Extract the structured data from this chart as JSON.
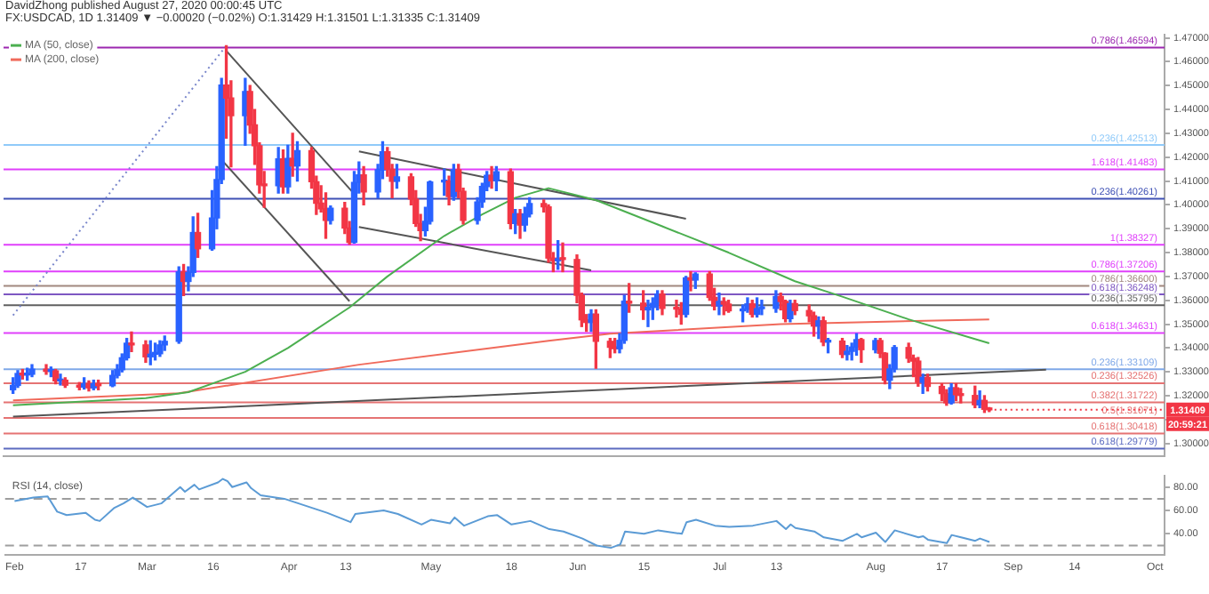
{
  "chart_data": [
    {
      "type": "candlestick",
      "title": "DavidZhong published August 27, 2020 00:00:45 UTC",
      "subtitle": "FX:USDCAD, 1D 1.31409 ▼ −0.00020 (−0.02%) O:1.31429 H:1.31501 L:1.31335 C:1.31409",
      "series": [
        {
          "type": "candlestick",
          "x": [
            "2020-02-03",
            "2020-02-04",
            "2020-02-05",
            "2020-02-06",
            "2020-02-07",
            "2020-02-10",
            "2020-02-11",
            "2020-02-12",
            "2020-02-13",
            "2020-02-14",
            "2020-02-17",
            "2020-02-18",
            "2020-02-19",
            "2020-02-20",
            "2020-02-21",
            "2020-02-24",
            "2020-02-25",
            "2020-02-26",
            "2020-02-27",
            "2020-02-28",
            "2020-03-02",
            "2020-03-03",
            "2020-03-04",
            "2020-03-05",
            "2020-03-06",
            "2020-03-09",
            "2020-03-10",
            "2020-03-11",
            "2020-03-12",
            "2020-03-13",
            "2020-03-16",
            "2020-03-17",
            "2020-03-18",
            "2020-03-19",
            "2020-03-20",
            "2020-03-23",
            "2020-03-24",
            "2020-03-25",
            "2020-03-26",
            "2020-03-27",
            "2020-03-30",
            "2020-03-31",
            "2020-04-01",
            "2020-04-02",
            "2020-04-03",
            "2020-04-06",
            "2020-04-07",
            "2020-04-08",
            "2020-04-09",
            "2020-04-10",
            "2020-04-13",
            "2020-04-14",
            "2020-04-15",
            "2020-04-16",
            "2020-04-17",
            "2020-04-20",
            "2020-04-21",
            "2020-04-22",
            "2020-04-23",
            "2020-04-24",
            "2020-04-27",
            "2020-04-28",
            "2020-04-29",
            "2020-04-30",
            "2020-05-01",
            "2020-05-04",
            "2020-05-05",
            "2020-05-06",
            "2020-05-07",
            "2020-05-08",
            "2020-05-11",
            "2020-05-12",
            "2020-05-13",
            "2020-05-14",
            "2020-05-15",
            "2020-05-18",
            "2020-05-19",
            "2020-05-20",
            "2020-05-21",
            "2020-05-22",
            "2020-05-25",
            "2020-05-26",
            "2020-05-27",
            "2020-05-28",
            "2020-05-29",
            "2020-06-01",
            "2020-06-02",
            "2020-06-03",
            "2020-06-04",
            "2020-06-05",
            "2020-06-08",
            "2020-06-09",
            "2020-06-10",
            "2020-06-11",
            "2020-06-12",
            "2020-06-15",
            "2020-06-16",
            "2020-06-17",
            "2020-06-18",
            "2020-06-19",
            "2020-06-22",
            "2020-06-23",
            "2020-06-24",
            "2020-06-25",
            "2020-06-26",
            "2020-06-29",
            "2020-06-30",
            "2020-07-01",
            "2020-07-02",
            "2020-07-03",
            "2020-07-06",
            "2020-07-07",
            "2020-07-08",
            "2020-07-09",
            "2020-07-10",
            "2020-07-13",
            "2020-07-14",
            "2020-07-15",
            "2020-07-16",
            "2020-07-17",
            "2020-07-20",
            "2020-07-21",
            "2020-07-22",
            "2020-07-23",
            "2020-07-24",
            "2020-07-27",
            "2020-07-28",
            "2020-07-29",
            "2020-07-30",
            "2020-07-31",
            "2020-08-03",
            "2020-08-04",
            "2020-08-05",
            "2020-08-06",
            "2020-08-07",
            "2020-08-10",
            "2020-08-11",
            "2020-08-12",
            "2020-08-13",
            "2020-08-14",
            "2020-08-17",
            "2020-08-18",
            "2020-08-19",
            "2020-08-20",
            "2020-08-21",
            "2020-08-24",
            "2020-08-25",
            "2020-08-26",
            "2020-08-27"
          ],
          "ohlc": [
            [
              1.3225,
              1.3275,
              1.321,
              1.3243
            ],
            [
              1.3243,
              1.3305,
              1.3235,
              1.3293
            ],
            [
              1.3293,
              1.331,
              1.327,
              1.3287
            ],
            [
              1.3287,
              1.3315,
              1.3265,
              1.329
            ],
            [
              1.329,
              1.333,
              1.328,
              1.3311
            ],
            [
              1.3311,
              1.333,
              1.329,
              1.3302
            ],
            [
              1.3302,
              1.332,
              1.328,
              1.3304
            ],
            [
              1.3304,
              1.331,
              1.325,
              1.3262
            ],
            [
              1.3262,
              1.329,
              1.3245,
              1.3265
            ],
            [
              1.3265,
              1.3275,
              1.3235,
              1.3244
            ],
            [
              1.3244,
              1.3255,
              1.3225,
              1.3236
            ],
            [
              1.3236,
              1.3275,
              1.3228,
              1.325
            ],
            [
              1.325,
              1.3262,
              1.322,
              1.3233
            ],
            [
              1.3233,
              1.3265,
              1.3225,
              1.325
            ],
            [
              1.325,
              1.3265,
              1.3225,
              1.3242
            ],
            [
              1.3242,
              1.3305,
              1.3238,
              1.3285
            ],
            [
              1.3285,
              1.333,
              1.3275,
              1.3309
            ],
            [
              1.3309,
              1.3375,
              1.33,
              1.3359
            ],
            [
              1.3359,
              1.344,
              1.335,
              1.342
            ],
            [
              1.342,
              1.3467,
              1.3385,
              1.3413
            ],
            [
              1.3413,
              1.343,
              1.334,
              1.3363
            ],
            [
              1.3363,
              1.343,
              1.333,
              1.3374
            ],
            [
              1.3374,
              1.342,
              1.335,
              1.3376
            ],
            [
              1.3376,
              1.343,
              1.3365,
              1.3413
            ],
            [
              1.3413,
              1.345,
              1.339,
              1.3428
            ],
            [
              1.3428,
              1.374,
              1.342,
              1.3719
            ],
            [
              1.3719,
              1.375,
              1.362,
              1.3679
            ],
            [
              1.3679,
              1.374,
              1.364,
              1.3717
            ],
            [
              1.3717,
              1.395,
              1.37,
              1.3884
            ],
            [
              1.3884,
              1.3965,
              1.378,
              1.3816
            ],
            [
              1.3816,
              1.406,
              1.381,
              1.3945
            ],
            [
              1.3945,
              1.416,
              1.39,
              1.4106
            ],
            [
              1.4106,
              1.453,
              1.409,
              1.4502
            ],
            [
              1.4502,
              1.4667,
              1.428,
              1.4448
            ],
            [
              1.4448,
              1.452,
              1.416,
              1.4374
            ],
            [
              1.4374,
              1.453,
              1.425,
              1.4475
            ],
            [
              1.4475,
              1.45,
              1.43,
              1.4335
            ],
            [
              1.4335,
              1.44,
              1.417,
              1.4248
            ],
            [
              1.4248,
              1.426,
              1.405,
              1.4084
            ],
            [
              1.4084,
              1.414,
              1.399,
              1.408
            ],
            [
              1.408,
              1.424,
              1.405,
              1.4193
            ],
            [
              1.4193,
              1.423,
              1.405,
              1.4076
            ],
            [
              1.4076,
              1.425,
              1.405,
              1.4195
            ],
            [
              1.4195,
              1.43,
              1.412,
              1.4163
            ],
            [
              1.4163,
              1.4265,
              1.41,
              1.4227
            ],
            [
              1.4227,
              1.424,
              1.407,
              1.4097
            ],
            [
              1.4097,
              1.412,
              1.396,
              1.4007
            ],
            [
              1.4007,
              1.408,
              1.397,
              1.3983
            ],
            [
              1.3983,
              1.405,
              1.386,
              1.3935
            ],
            [
              1.3935,
              1.3995,
              1.392,
              1.3986
            ],
            [
              1.3986,
              1.401,
              1.388,
              1.3903
            ],
            [
              1.3903,
              1.393,
              1.3835,
              1.3843
            ],
            [
              1.3843,
              1.414,
              1.384,
              1.4094
            ],
            [
              1.4094,
              1.418,
              1.405,
              1.4126
            ],
            [
              1.4126,
              1.416,
              1.4,
              1.4054
            ],
            [
              1.4054,
              1.417,
              1.403,
              1.4147
            ],
            [
              1.4147,
              1.4265,
              1.411,
              1.4223
            ],
            [
              1.4223,
              1.424,
              1.412,
              1.4149
            ],
            [
              1.4149,
              1.417,
              1.403,
              1.4099
            ],
            [
              1.4099,
              1.417,
              1.407,
              1.4117
            ],
            [
              1.4117,
              1.413,
              1.4,
              1.4024
            ],
            [
              1.4024,
              1.406,
              1.391,
              1.3922
            ],
            [
              1.3922,
              1.396,
              1.385,
              1.3892
            ],
            [
              1.3892,
              1.399,
              1.387,
              1.3931
            ],
            [
              1.3931,
              1.41,
              1.392,
              1.4096
            ],
            [
              1.4096,
              1.415,
              1.404,
              1.41
            ],
            [
              1.41,
              1.412,
              1.4,
              1.4035
            ],
            [
              1.4035,
              1.417,
              1.402,
              1.4147
            ],
            [
              1.4147,
              1.417,
              1.403,
              1.4057
            ],
            [
              1.4057,
              1.407,
              1.392,
              1.3935
            ],
            [
              1.3935,
              1.403,
              1.392,
              1.4012
            ],
            [
              1.4012,
              1.409,
              1.399,
              1.4077
            ],
            [
              1.4077,
              1.414,
              1.406,
              1.4124
            ],
            [
              1.4124,
              1.416,
              1.407,
              1.4101
            ],
            [
              1.4101,
              1.416,
              1.406,
              1.4139
            ],
            [
              1.4139,
              1.415,
              1.39,
              1.3922
            ],
            [
              1.3922,
              1.398,
              1.388,
              1.3963
            ],
            [
              1.3963,
              1.398,
              1.386,
              1.3915
            ],
            [
              1.3915,
              1.399,
              1.389,
              1.3962
            ],
            [
              1.3962,
              1.403,
              1.395,
              1.4006
            ],
            [
              1.4006,
              1.402,
              1.397,
              1.3992
            ],
            [
              1.3992,
              1.4,
              1.376,
              1.3777
            ],
            [
              1.3777,
              1.38,
              1.372,
              1.3766
            ],
            [
              1.3766,
              1.385,
              1.373,
              1.3774
            ],
            [
              1.3774,
              1.384,
              1.372,
              1.3771
            ],
            [
              1.3771,
              1.379,
              1.359,
              1.3621
            ],
            [
              1.3621,
              1.363,
              1.349,
              1.3518
            ],
            [
              1.3518,
              1.354,
              1.347,
              1.3507
            ],
            [
              1.3507,
              1.356,
              1.347,
              1.3542
            ],
            [
              1.3542,
              1.356,
              1.3315,
              1.3428
            ],
            [
              1.3428,
              1.344,
              1.336,
              1.3403
            ],
            [
              1.3403,
              1.344,
              1.338,
              1.3397
            ],
            [
              1.3397,
              1.346,
              1.338,
              1.3432
            ],
            [
              1.3432,
              1.362,
              1.342,
              1.3596
            ],
            [
              1.3596,
              1.367,
              1.355,
              1.3588
            ],
            [
              1.3588,
              1.364,
              1.352,
              1.356
            ],
            [
              1.356,
              1.36,
              1.349,
              1.357
            ],
            [
              1.357,
              1.361,
              1.352,
              1.3587
            ],
            [
              1.3587,
              1.364,
              1.356,
              1.3626
            ],
            [
              1.3626,
              1.364,
              1.354,
              1.3566
            ],
            [
              1.3566,
              1.36,
              1.353,
              1.3563
            ],
            [
              1.3563,
              1.359,
              1.35,
              1.3541
            ],
            [
              1.3541,
              1.37,
              1.353,
              1.3694
            ],
            [
              1.3694,
              1.372,
              1.364,
              1.3685
            ],
            [
              1.3685,
              1.3715,
              1.365,
              1.371
            ],
            [
              1.371,
              1.372,
              1.36,
              1.3612
            ],
            [
              1.3612,
              1.365,
              1.356,
              1.3576
            ],
            [
              1.3576,
              1.363,
              1.354,
              1.3595
            ],
            [
              1.3595,
              1.361,
              1.354,
              1.3584
            ],
            [
              1.3584,
              1.36,
              1.355,
              1.3556
            ],
            [
              1.3556,
              1.358,
              1.351,
              1.3562
            ],
            [
              1.3562,
              1.361,
              1.355,
              1.3585
            ],
            [
              1.3585,
              1.36,
              1.353,
              1.3541
            ],
            [
              1.3541,
              1.361,
              1.353,
              1.3565
            ],
            [
              1.3565,
              1.36,
              1.354,
              1.3566
            ],
            [
              1.3566,
              1.364,
              1.355,
              1.3616
            ],
            [
              1.3616,
              1.363,
              1.356,
              1.3595
            ],
            [
              1.3595,
              1.36,
              1.351,
              1.3523
            ],
            [
              1.3523,
              1.36,
              1.351,
              1.3586
            ],
            [
              1.3586,
              1.36,
              1.354,
              1.3557
            ],
            [
              1.3557,
              1.358,
              1.351,
              1.3535
            ],
            [
              1.3535,
              1.355,
              1.345,
              1.3492
            ],
            [
              1.3492,
              1.353,
              1.344,
              1.3514
            ],
            [
              1.3514,
              1.353,
              1.341,
              1.3425
            ],
            [
              1.3425,
              1.344,
              1.338,
              1.3429
            ],
            [
              1.3429,
              1.344,
              1.336,
              1.3373
            ],
            [
              1.3373,
              1.341,
              1.335,
              1.3386
            ],
            [
              1.3386,
              1.342,
              1.335,
              1.3404
            ],
            [
              1.3404,
              1.346,
              1.337,
              1.3435
            ],
            [
              1.3435,
              1.344,
              1.334,
              1.3393
            ],
            [
              1.3393,
              1.344,
              1.338,
              1.3431
            ],
            [
              1.3431,
              1.344,
              1.336,
              1.3378
            ],
            [
              1.3378,
              1.338,
              1.325,
              1.3265
            ],
            [
              1.3265,
              1.333,
              1.323,
              1.3312
            ],
            [
              1.3312,
              1.341,
              1.33,
              1.3402
            ],
            [
              1.3402,
              1.342,
              1.334,
              1.3357
            ],
            [
              1.3357,
              1.337,
              1.328,
              1.3345
            ],
            [
              1.3345,
              1.336,
              1.324,
              1.3256
            ],
            [
              1.3256,
              1.329,
              1.321,
              1.3277
            ],
            [
              1.3277,
              1.329,
              1.322,
              1.3239
            ],
            [
              1.3239,
              1.325,
              1.318,
              1.3209
            ],
            [
              1.3209,
              1.3225,
              1.316,
              1.317
            ],
            [
              1.317,
              1.325,
              1.3165,
              1.3233
            ],
            [
              1.3233,
              1.325,
              1.318,
              1.3204
            ],
            [
              1.3204,
              1.323,
              1.317,
              1.3201
            ],
            [
              1.3201,
              1.324,
              1.315,
              1.3162
            ],
            [
              1.3162,
              1.322,
              1.315,
              1.318
            ],
            [
              1.318,
              1.32,
              1.313,
              1.3143
            ],
            [
              1.31429,
              1.31501,
              1.31335,
              1.31409
            ]
          ],
          "colors": [
            "#2962ff",
            "#2962ff",
            "#f23645",
            "#2962ff",
            "#2962ff",
            "#f23645",
            "#2962ff",
            "#f23645",
            "#2962ff",
            "#f23645",
            "#f23645",
            "#2962ff",
            "#f23645",
            "#2962ff",
            "#f23645",
            "#2962ff",
            "#2962ff",
            "#2962ff",
            "#2962ff",
            "#f23645",
            "#f23645",
            "#2962ff",
            "#2962ff",
            "#2962ff",
            "#2962ff",
            "#2962ff",
            "#f23645",
            "#2962ff",
            "#2962ff",
            "#f23645",
            "#2962ff",
            "#2962ff",
            "#2962ff",
            "#f23645",
            "#f23645",
            "#2962ff",
            "#f23645",
            "#f23645",
            "#f23645",
            "#f23645",
            "#2962ff",
            "#f23645",
            "#2962ff",
            "#f23645",
            "#2962ff",
            "#f23645",
            "#f23645",
            "#f23645",
            "#f23645",
            "#2962ff",
            "#f23645",
            "#f23645",
            "#2962ff",
            "#2962ff",
            "#f23645",
            "#2962ff",
            "#2962ff",
            "#f23645",
            "#f23645",
            "#2962ff",
            "#f23645",
            "#f23645",
            "#f23645",
            "#2962ff",
            "#2962ff",
            "#2962ff",
            "#f23645",
            "#2962ff",
            "#f23645",
            "#f23645",
            "#2962ff",
            "#2962ff",
            "#2962ff",
            "#f23645",
            "#2962ff",
            "#f23645",
            "#2962ff",
            "#f23645",
            "#2962ff",
            "#2962ff",
            "#f23645",
            "#f23645",
            "#f23645",
            "#2962ff",
            "#f23645",
            "#f23645",
            "#f23645",
            "#f23645",
            "#2962ff",
            "#f23645",
            "#f23645",
            "#f23645",
            "#2962ff",
            "#2962ff",
            "#f23645",
            "#f23645",
            "#2962ff",
            "#2962ff",
            "#2962ff",
            "#f23645",
            "#f23645",
            "#f23645",
            "#2962ff",
            "#f23645",
            "#2962ff",
            "#f23645",
            "#f23645",
            "#2962ff",
            "#f23645",
            "#f23645",
            "#2962ff",
            "#2962ff",
            "#f23645",
            "#2962ff",
            "#2962ff",
            "#2962ff",
            "#f23645",
            "#f23645",
            "#2962ff",
            "#f23645",
            "#f23645",
            "#f23645",
            "#2962ff",
            "#f23645",
            "#2962ff",
            "#f23645",
            "#2962ff",
            "#2962ff",
            "#2962ff",
            "#f23645",
            "#2962ff",
            "#f23645",
            "#f23645",
            "#2962ff",
            "#2962ff",
            "#f23645",
            "#f23645",
            "#f23645",
            "#2962ff",
            "#f23645",
            "#f23645",
            "#f23645",
            "#2962ff",
            "#f23645",
            "#f23645",
            "#f23645",
            "#2962ff",
            "#f23645",
            "#f23645"
          ]
        },
        {
          "type": "line",
          "name": "MA (50, close)",
          "color": "#4caf50",
          "x": [
            "2020-02-03",
            "2020-03-02",
            "2020-03-11",
            "2020-03-23",
            "2020-04-01",
            "2020-04-14",
            "2020-04-22",
            "2020-05-04",
            "2020-05-12",
            "2020-05-19",
            "2020-05-26",
            "2020-06-05",
            "2020-06-19",
            "2020-07-03",
            "2020-07-17",
            "2020-07-27",
            "2020-08-10",
            "2020-08-27"
          ],
          "values": [
            1.316,
            1.319,
            1.3215,
            1.33,
            1.34,
            1.357,
            1.37,
            1.387,
            1.396,
            1.403,
            1.407,
            1.402,
            1.391,
            1.38,
            1.368,
            1.3615,
            1.352,
            1.342
          ]
        },
        {
          "type": "line",
          "name": "MA (200, close)",
          "color": "#f06a5b",
          "x": [
            "2020-02-03",
            "2020-03-09",
            "2020-04-16",
            "2020-05-26",
            "2020-06-08",
            "2020-07-14",
            "2020-08-27"
          ],
          "values": [
            1.318,
            1.321,
            1.333,
            1.343,
            1.346,
            1.35,
            1.352
          ]
        },
        {
          "type": "line",
          "color": "#555555",
          "x": [
            "2020-03-19",
            "2020-04-15"
          ],
          "values": [
            1.4646,
            1.4046
          ]
        },
        {
          "type": "line",
          "color": "#555555",
          "x": [
            "2020-03-18",
            "2020-04-14"
          ],
          "values": [
            1.4189,
            1.3596
          ]
        },
        {
          "type": "line",
          "color": "#555555",
          "x": [
            "2020-04-16",
            "2020-06-24"
          ],
          "values": [
            1.4224,
            1.3942
          ]
        },
        {
          "type": "line",
          "color": "#555555",
          "x": [
            "2020-04-16",
            "2020-06-04"
          ],
          "values": [
            1.3907,
            1.3726
          ]
        },
        {
          "type": "line",
          "color": "#555555",
          "x": [
            "2020-02-03",
            "2020-09-08"
          ],
          "values": [
            1.3112,
            1.3309
          ]
        },
        {
          "type": "line",
          "color": "#7986cb",
          "line_style": "dotted",
          "x": [
            "2020-02-03",
            "2020-03-19"
          ],
          "values": [
            1.3537,
            1.4667
          ]
        }
      ],
      "legend": "top left",
      "xlim": [
        "2020-02-01",
        "2020-10-03"
      ],
      "ylim": [
        1.2945,
        1.4715
      ],
      "yticks": [
        {
          "value": 1.3,
          "label": "1.30000"
        },
        {
          "value": 1.31,
          "label": null
        },
        {
          "value": 1.32,
          "label": "1.32000"
        },
        {
          "value": 1.33,
          "label": "1.33000"
        },
        {
          "value": 1.34,
          "label": "1.34000"
        },
        {
          "value": 1.35,
          "label": "1.35000"
        },
        {
          "value": 1.36,
          "label": "1.36000"
        },
        {
          "value": 1.37,
          "label": "1.37000"
        },
        {
          "value": 1.38,
          "label": "1.38000"
        },
        {
          "value": 1.39,
          "label": "1.39000"
        },
        {
          "value": 1.4,
          "label": "1.40000"
        },
        {
          "value": 1.41,
          "label": "1.41000"
        },
        {
          "value": 1.42,
          "label": "1.42000"
        },
        {
          "value": 1.43,
          "label": "1.43000"
        },
        {
          "value": 1.44,
          "label": "1.44000"
        },
        {
          "value": 1.45,
          "label": "1.45000"
        },
        {
          "value": 1.46,
          "label": "1.46000"
        },
        {
          "value": 1.47,
          "label": "1.47000"
        }
      ],
      "tick_labels": "y",
      "ref_lines": [
        {
          "axis": "y",
          "value": 1.46594,
          "label": "0.786(1.46594)",
          "color": "#9c27b0"
        },
        {
          "axis": "y",
          "value": 1.42513,
          "label": "0.236(1.42513)",
          "color": "#90caf9"
        },
        {
          "axis": "y",
          "value": 1.41483,
          "label": "1.618(1.41483)",
          "color": "#e040fb"
        },
        {
          "axis": "y",
          "value": 1.40261,
          "label": "0.236(1.40261)",
          "color": "#3f51b5"
        },
        {
          "axis": "y",
          "value": 1.38327,
          "label": "1(1.38327)",
          "color": "#e040fb"
        },
        {
          "axis": "y",
          "value": 1.37206,
          "label": "0.786(1.37206)",
          "color": "#e040fb"
        },
        {
          "axis": "y",
          "value": 1.366,
          "label": "0.786(1.36600)",
          "color": "#a1887f"
        },
        {
          "axis": "y",
          "value": 1.36248,
          "label": "0.618(1.36248)",
          "color": "#7e57c2"
        },
        {
          "axis": "y",
          "value": 1.35795,
          "label": "0.236(1.35795)",
          "color": "#616161"
        },
        {
          "axis": "y",
          "value": 1.34631,
          "label": "0.618(1.34631)",
          "color": "#e040fb"
        },
        {
          "axis": "y",
          "value": 1.33109,
          "label": "0.236(1.33109)",
          "color": "#7fa8e8"
        },
        {
          "axis": "y",
          "value": 1.32526,
          "label": "0.236(1.32526)",
          "color": "#e57373"
        },
        {
          "axis": "y",
          "value": 1.31722,
          "label": "0.382(1.31722)",
          "color": "#e57373"
        },
        {
          "axis": "y",
          "value": 1.31071,
          "label": "0.5(1.31071)",
          "color": "#e57373"
        },
        {
          "axis": "y",
          "value": 1.30418,
          "label": "0.618(1.30418)",
          "color": "#e57373"
        },
        {
          "axis": "y",
          "value": 1.29779,
          "label": "0.618(1.29779)",
          "color": "#5c6bc0"
        }
      ],
      "annotations": [
        {
          "text": "1.31409",
          "x": "2020-08-27",
          "y": 1.31409
        },
        "20:59:21"
      ]
    },
    {
      "type": "line",
      "title": "RSI (14, close)",
      "color": "#5b9bd5",
      "x": [
        "2020-02-03",
        "2020-02-07",
        "2020-02-10",
        "2020-02-12",
        "2020-02-14",
        "2020-02-18",
        "2020-02-20",
        "2020-02-21",
        "2020-02-24",
        "2020-02-26",
        "2020-02-28",
        "2020-03-02",
        "2020-03-05",
        "2020-03-09",
        "2020-03-10",
        "2020-03-12",
        "2020-03-13",
        "2020-03-17",
        "2020-03-18",
        "2020-03-19",
        "2020-03-20",
        "2020-03-23",
        "2020-03-24",
        "2020-03-26",
        "2020-03-31",
        "2020-04-03",
        "2020-04-09",
        "2020-04-14",
        "2020-04-15",
        "2020-04-21",
        "2020-04-24",
        "2020-04-29",
        "2020-05-01",
        "2020-05-05",
        "2020-05-06",
        "2020-05-08",
        "2020-05-13",
        "2020-05-15",
        "2020-05-18",
        "2020-05-22",
        "2020-05-26",
        "2020-05-29",
        "2020-06-02",
        "2020-06-05",
        "2020-06-08",
        "2020-06-10",
        "2020-06-11",
        "2020-06-15",
        "2020-06-18",
        "2020-06-23",
        "2020-06-24",
        "2020-06-26",
        "2020-06-30",
        "2020-07-03",
        "2020-07-08",
        "2020-07-13",
        "2020-07-15",
        "2020-07-16",
        "2020-07-17",
        "2020-07-21",
        "2020-07-23",
        "2020-07-27",
        "2020-07-30",
        "2020-07-31",
        "2020-08-03",
        "2020-08-05",
        "2020-08-07",
        "2020-08-12",
        "2020-08-13",
        "2020-08-14",
        "2020-08-18",
        "2020-08-19",
        "2020-08-21",
        "2020-08-24",
        "2020-08-25",
        "2020-08-27"
      ],
      "values": [
        68,
        71,
        72,
        59,
        56,
        58,
        52,
        51,
        62,
        66,
        71,
        63,
        66,
        80,
        76,
        82,
        78,
        84,
        87,
        85,
        80,
        84,
        79,
        73,
        70,
        66,
        58,
        50,
        57,
        60,
        57,
        48,
        52,
        49,
        54,
        47,
        55,
        56,
        48,
        51,
        44,
        42,
        36,
        30,
        28,
        31,
        42,
        40,
        43,
        40,
        50,
        52,
        47,
        46,
        47,
        51,
        44,
        48,
        45,
        42,
        37,
        34,
        40,
        37,
        41,
        33,
        43,
        37,
        38,
        35,
        32,
        39,
        37,
        34,
        36,
        33
      ],
      "xlim": [
        "2020-02-01",
        "2020-10-03"
      ],
      "xticks": [
        {
          "value": "2020-02-03",
          "label": "Feb"
        },
        {
          "value": "2020-02-17",
          "label": "17"
        },
        {
          "value": "2020-03-02",
          "label": "Mar"
        },
        {
          "value": "2020-03-16",
          "label": "16"
        },
        {
          "value": "2020-04-01",
          "label": "Apr"
        },
        {
          "value": "2020-04-13",
          "label": "13"
        },
        {
          "value": "2020-05-01",
          "label": "May"
        },
        {
          "value": "2020-05-18",
          "label": "18"
        },
        {
          "value": "2020-06-01",
          "label": "Jun"
        },
        {
          "value": "2020-06-15",
          "label": "15"
        },
        {
          "value": "2020-07-01",
          "label": "Jul"
        },
        {
          "value": "2020-07-13",
          "label": "13"
        },
        {
          "value": "2020-08-03",
          "label": "Aug"
        },
        {
          "value": "2020-08-17",
          "label": "17"
        },
        {
          "value": "2020-09-01",
          "label": "Sep"
        },
        {
          "value": "2020-09-14",
          "label": "14"
        },
        {
          "value": "2020-10-01",
          "label": "Oct"
        }
      ],
      "ylim": [
        22,
        90
      ],
      "yticks": [
        {
          "value": 40,
          "label": "40.00"
        },
        {
          "value": 60,
          "label": "60.00"
        },
        {
          "value": 80,
          "label": "80.00"
        }
      ],
      "ref_lines": [
        {
          "axis": "y",
          "value": 70,
          "color": "#9e9e9e",
          "line_style": "dashed"
        },
        {
          "axis": "y",
          "value": 30,
          "color": "#9e9e9e",
          "line_style": "dashed"
        }
      ]
    }
  ]
}
